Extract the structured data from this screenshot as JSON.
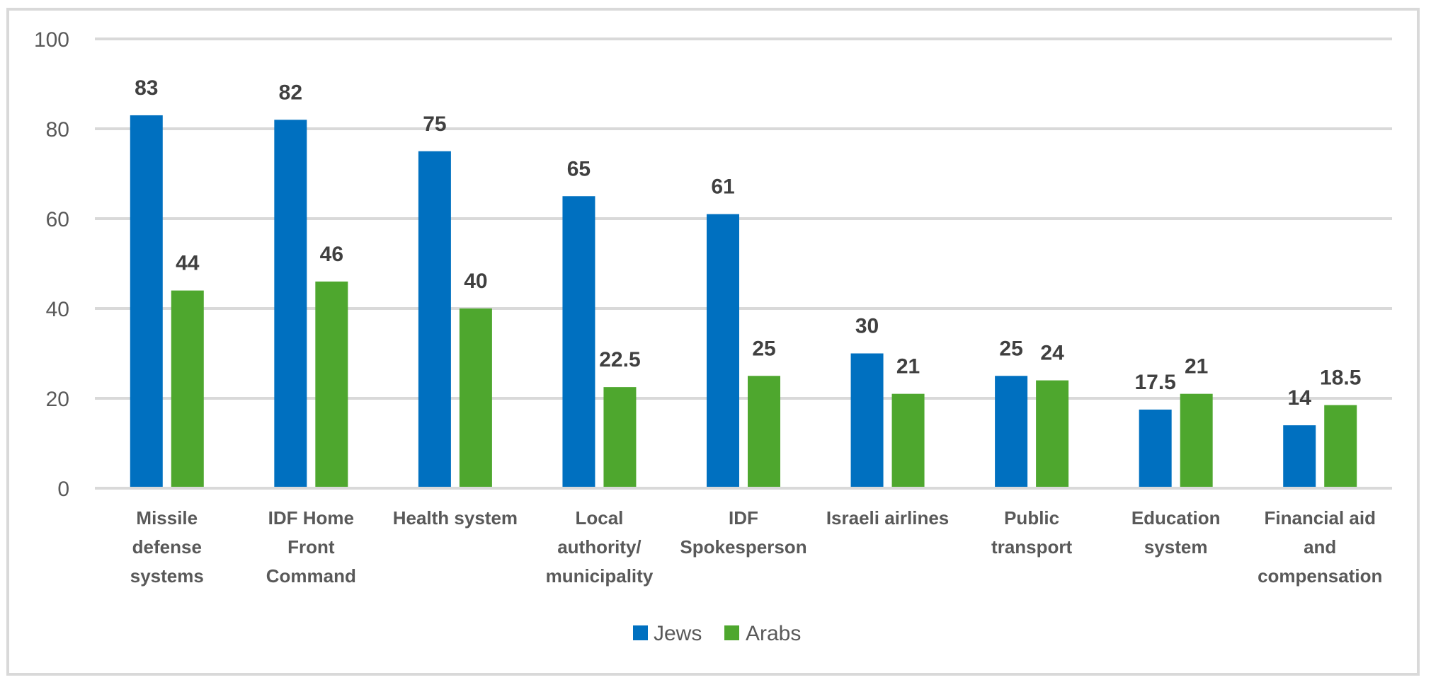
{
  "chart_data": {
    "type": "bar",
    "title": "",
    "xlabel": "",
    "ylabel": "",
    "ylim": [
      0,
      100
    ],
    "yticks": [
      0,
      20,
      40,
      60,
      80,
      100
    ],
    "grid": true,
    "legend_position": "bottom-center",
    "categories": [
      [
        "Missile",
        "defense",
        "systems"
      ],
      [
        "IDF Home",
        "Front",
        "Command"
      ],
      [
        "Health system"
      ],
      [
        "Local",
        "authority/",
        "municipality"
      ],
      [
        "IDF",
        "Spokesperson"
      ],
      [
        "Israeli airlines"
      ],
      [
        "Public",
        "transport"
      ],
      [
        "Education",
        "system"
      ],
      [
        "Financial aid",
        "and",
        "compensation"
      ]
    ],
    "series": [
      {
        "name": "Jews",
        "color": "#0070c0",
        "values": [
          83,
          82,
          75,
          65,
          61,
          30,
          25,
          17.5,
          14
        ]
      },
      {
        "name": "Arabs",
        "color": "#4ea72e",
        "values": [
          44,
          46,
          40,
          22.5,
          25,
          21,
          24,
          21,
          18.5
        ]
      }
    ],
    "gridline_color": "#d9d9d9"
  }
}
